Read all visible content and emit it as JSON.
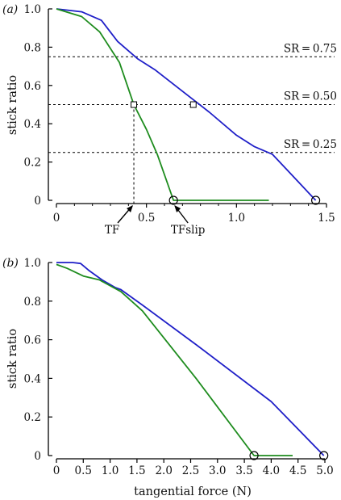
{
  "chart_data": [
    {
      "type": "line",
      "panel_label": "(a)",
      "ylabel": "stick ratio",
      "xlabel": "",
      "xlim": [
        0,
        1.5
      ],
      "ylim": [
        0,
        1.0
      ],
      "xticks": [
        0,
        0.5,
        1.0,
        1.5
      ],
      "xtick_labels": [
        "0",
        "0.5",
        "1.0",
        "1.5"
      ],
      "yticks": [
        0,
        0.2,
        0.4,
        0.6,
        0.8,
        1.0
      ],
      "ytick_labels": [
        "0",
        "0.2",
        "0.4",
        "0.6",
        "0.8",
        "1.0"
      ],
      "series": [
        {
          "color": "#1f1fc8",
          "x": [
            0,
            0.14,
            0.25,
            0.34,
            0.45,
            0.55,
            0.7,
            0.85,
            1.0,
            1.1,
            1.2,
            1.3,
            1.44
          ],
          "y": [
            1.0,
            0.985,
            0.94,
            0.83,
            0.74,
            0.68,
            0.57,
            0.46,
            0.34,
            0.28,
            0.24,
            0.14,
            0.0
          ]
        },
        {
          "color": "#1e8c1e",
          "x": [
            0,
            0.14,
            0.24,
            0.35,
            0.43,
            0.5,
            0.56,
            0.65,
            0.9,
            1.18
          ],
          "y": [
            1.0,
            0.96,
            0.88,
            0.72,
            0.5,
            0.37,
            0.24,
            0.0,
            0.0,
            0.0
          ]
        }
      ],
      "reference_lines": [
        {
          "label": "SR = 0.75",
          "y": 0.75
        },
        {
          "label": "SR = 0.50",
          "y": 0.5
        },
        {
          "label": "SR = 0.25",
          "y": 0.25
        }
      ],
      "square_markers": [
        {
          "x": 0.43,
          "y": 0.5
        },
        {
          "x": 0.76,
          "y": 0.5
        }
      ],
      "circle_markers": [
        {
          "x": 0.65,
          "y": 0.0
        },
        {
          "x": 1.44,
          "y": 0.0
        }
      ],
      "annotations": [
        {
          "text": "TF",
          "x": 0.43
        },
        {
          "text": "TFslip",
          "x": 0.65
        }
      ]
    },
    {
      "type": "line",
      "panel_label": "(b)",
      "ylabel": "stick ratio",
      "xlabel": "tangential force (N)",
      "xlim": [
        0,
        5.0
      ],
      "ylim": [
        0,
        1.0
      ],
      "xticks": [
        0,
        0.5,
        1.0,
        1.5,
        2.0,
        2.5,
        3.0,
        3.5,
        4.0,
        4.5,
        5.0
      ],
      "xtick_labels": [
        "0",
        "0.5",
        "1.0",
        "1.5",
        "2.0",
        "2.5",
        "3.0",
        "3.5",
        "4.0",
        "4.5",
        "5.0"
      ],
      "yticks": [
        0,
        0.2,
        0.4,
        0.6,
        0.8,
        1.0
      ],
      "ytick_labels": [
        "0",
        "0.2",
        "0.4",
        "0.6",
        "0.8",
        "1.0"
      ],
      "series": [
        {
          "color": "#1f1fc8",
          "x": [
            0,
            0.3,
            0.45,
            0.6,
            0.85,
            1.1,
            1.2,
            1.6,
            2.6,
            4.0,
            4.98
          ],
          "y": [
            1.0,
            1.0,
            0.995,
            0.96,
            0.91,
            0.87,
            0.86,
            0.78,
            0.575,
            0.28,
            0.0
          ]
        },
        {
          "color": "#1e8c1e",
          "x": [
            0,
            0.2,
            0.5,
            0.8,
            1.2,
            1.6,
            2.6,
            3.68,
            4.4
          ],
          "y": [
            0.99,
            0.97,
            0.93,
            0.91,
            0.85,
            0.75,
            0.4,
            0.0,
            0.0
          ]
        }
      ],
      "circle_markers": [
        {
          "x": 3.68,
          "y": 0.0
        },
        {
          "x": 4.98,
          "y": 0.0
        }
      ]
    }
  ]
}
